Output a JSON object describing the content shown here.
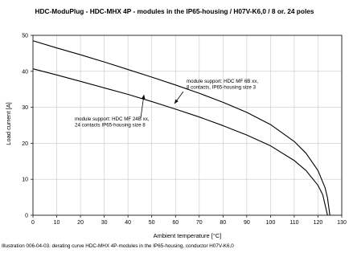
{
  "chart_data": {
    "type": "line",
    "title": "HDC-ModuPlug - HDC-MHX 4P - modules in the IP65-housing / H07V-K6,0 / 8 or. 24 poles",
    "xlabel": "Ambient temperature [°C]",
    "ylabel": "Load current [A]",
    "xlim": [
      0,
      130
    ],
    "ylim": [
      0,
      50
    ],
    "xticks": [
      "0",
      "10",
      "20",
      "30",
      "40",
      "50",
      "60",
      "70",
      "80",
      "90",
      "100",
      "110",
      "120",
      "130"
    ],
    "yticks": [
      "0",
      "10",
      "20",
      "30",
      "40",
      "50"
    ],
    "grid": true,
    "series": [
      {
        "name": "module support: HDC MF 6B xx, 8 contacts, IP65-housing size 3",
        "x": [
          0,
          10,
          20,
          30,
          40,
          50,
          60,
          70,
          80,
          90,
          100,
          110,
          115,
          120,
          123,
          124,
          125
        ],
        "y": [
          48.5,
          46.5,
          44.6,
          42.6,
          40.5,
          38.4,
          36.2,
          33.9,
          31.4,
          28.6,
          25.2,
          20.5,
          17.2,
          12.4,
          7.6,
          4.8,
          0
        ],
        "annotation": [
          "module support: HDC MF 6B xx,",
          "8 contacts, IP65-housing size 3"
        ]
      },
      {
        "name": "module support: HDC MF 24B xx, 24 contacts IP65-housing size 8",
        "x": [
          0,
          10,
          20,
          30,
          40,
          50,
          60,
          70,
          80,
          90,
          100,
          110,
          115,
          120,
          122,
          124
        ],
        "y": [
          40.7,
          39.0,
          37.2,
          35.4,
          33.6,
          31.6,
          29.5,
          27.3,
          24.9,
          22.3,
          19.3,
          15.2,
          12.4,
          8.3,
          5.7,
          0
        ],
        "annotation": [
          "module support: HDC MF 24B xx,",
          "24 contacts IP65-housing size 8"
        ]
      }
    ]
  },
  "caption": "Illustration 006-04-03. derating curve HDC-MHX 4P-modules in the IP65-housing, conductor H07V-K6,0"
}
